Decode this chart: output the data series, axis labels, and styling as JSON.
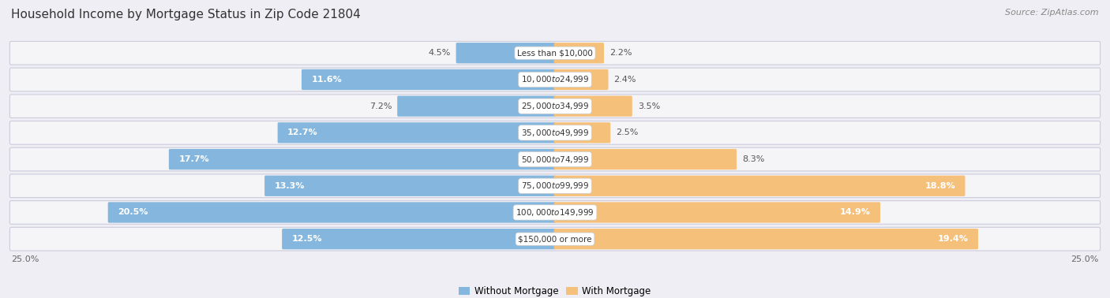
{
  "title": "Household Income by Mortgage Status in Zip Code 21804",
  "source": "Source: ZipAtlas.com",
  "categories": [
    "Less than $10,000",
    "$10,000 to $24,999",
    "$25,000 to $34,999",
    "$35,000 to $49,999",
    "$50,000 to $74,999",
    "$75,000 to $99,999",
    "$100,000 to $149,999",
    "$150,000 or more"
  ],
  "without_mortgage": [
    4.5,
    11.6,
    7.2,
    12.7,
    17.7,
    13.3,
    20.5,
    12.5
  ],
  "with_mortgage": [
    2.2,
    2.4,
    3.5,
    2.5,
    8.3,
    18.8,
    14.9,
    19.4
  ],
  "color_without": "#85b7de",
  "color_with": "#f5c07a",
  "bg_color": "#eeeef4",
  "row_bg_color": "#e0e0ea",
  "row_inner_color": "#f5f5f8",
  "max_val": 25.0,
  "legend_without": "Without Mortgage",
  "legend_with": "With Mortgage",
  "title_fontsize": 11,
  "source_fontsize": 8,
  "label_fontsize": 8,
  "cat_fontsize": 7.5,
  "wo_inside_threshold": 10.0,
  "wm_inside_threshold": 10.0
}
